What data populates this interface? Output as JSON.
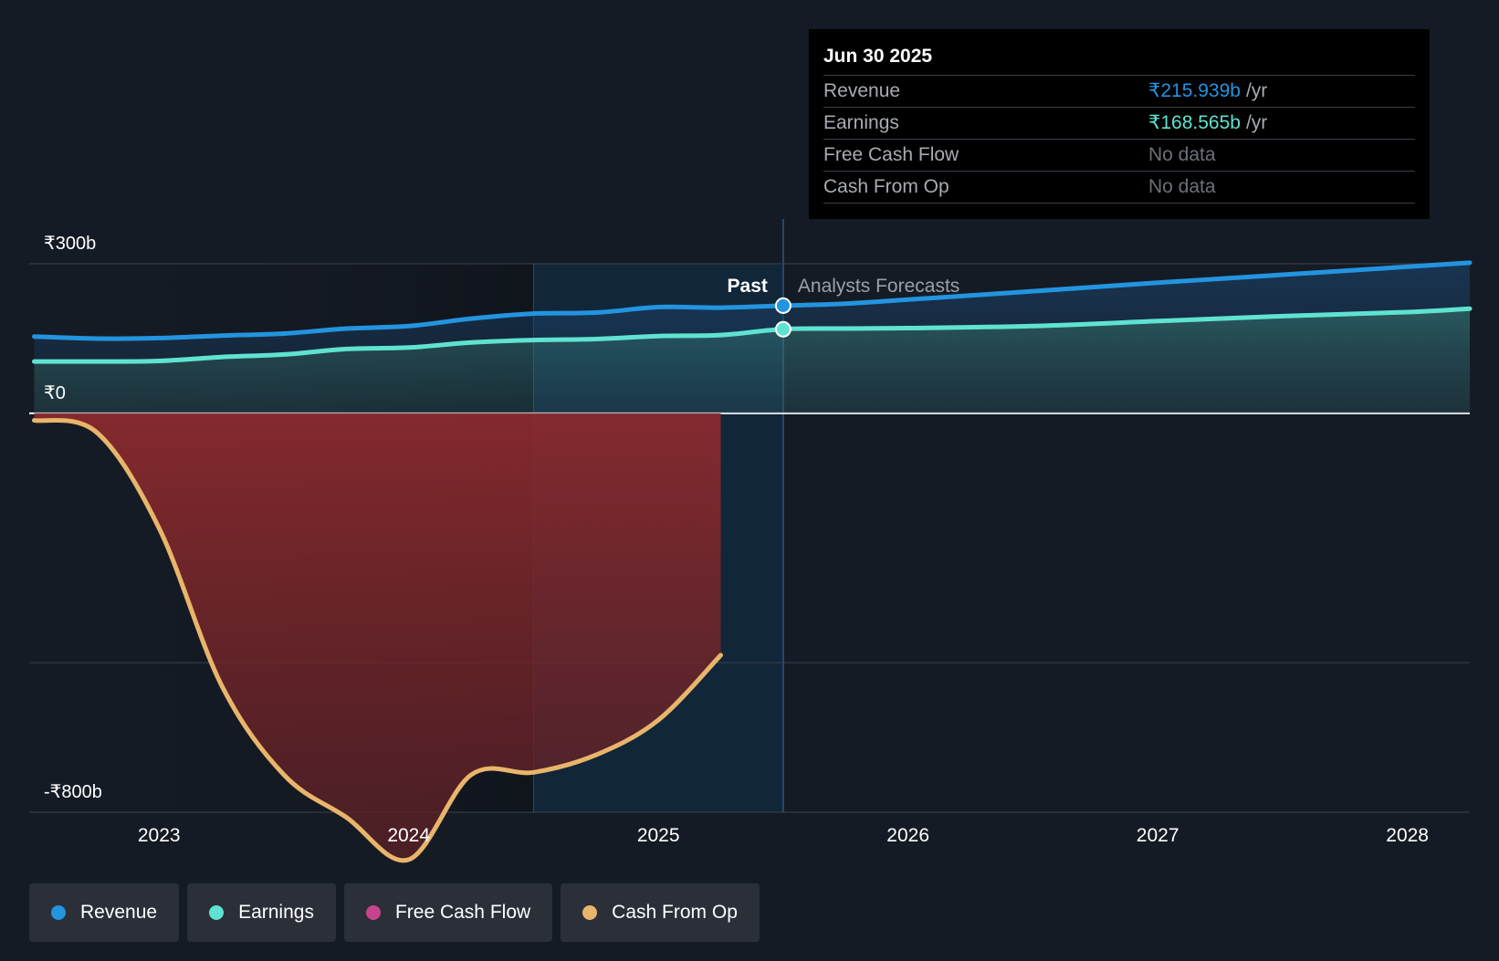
{
  "chart_data": {
    "type": "area",
    "title": "",
    "currency": "₹",
    "y_axis": {
      "min": -800,
      "max": 300,
      "unit": "b",
      "tick_labels": [
        {
          "value": 300,
          "label": "₹300b"
        },
        {
          "value": 0,
          "label": "₹0"
        },
        {
          "value": -800,
          "label": "-₹800b"
        }
      ],
      "gridlines": [
        300,
        0,
        -500,
        -800
      ]
    },
    "x_axis": {
      "min": 2022.48,
      "max": 2028.25,
      "tick_labels": [
        {
          "value": 2023,
          "label": "2023"
        },
        {
          "value": 2024,
          "label": "2024"
        },
        {
          "value": 2025,
          "label": "2025"
        },
        {
          "value": 2026,
          "label": "2026"
        },
        {
          "value": 2027,
          "label": "2027"
        },
        {
          "value": 2028,
          "label": "2028"
        }
      ]
    },
    "regions": {
      "past_label": "Past",
      "forecast_label": "Analysts Forecasts",
      "highlight_start": 2024.5,
      "divider": 2025.5
    },
    "series": [
      {
        "name": "Revenue",
        "color": "#2394df",
        "x": [
          2022.5,
          2022.75,
          2023.0,
          2023.25,
          2023.5,
          2023.75,
          2024.0,
          2024.25,
          2024.5,
          2024.75,
          2025.0,
          2025.25,
          2025.5,
          2025.75,
          2026.0,
          2026.5,
          2027.0,
          2027.5,
          2028.0,
          2028.25
        ],
        "values": [
          154,
          150,
          151,
          156,
          160,
          170,
          175,
          190,
          200,
          202,
          213,
          212,
          216,
          220,
          228,
          245,
          262,
          278,
          294,
          302
        ]
      },
      {
        "name": "Earnings",
        "color": "#5fe3d0",
        "x": [
          2022.5,
          2022.75,
          2023.0,
          2023.25,
          2023.5,
          2023.75,
          2024.0,
          2024.25,
          2024.5,
          2024.75,
          2025.0,
          2025.25,
          2025.5,
          2025.75,
          2026.0,
          2026.5,
          2027.0,
          2027.5,
          2028.0,
          2028.25
        ],
        "values": [
          104,
          104,
          105,
          113,
          118,
          129,
          132,
          142,
          147,
          149,
          155,
          157,
          169,
          170,
          171,
          175,
          185,
          195,
          203,
          210
        ]
      },
      {
        "name": "Free Cash Flow",
        "color": "#c8458e",
        "x": [],
        "values": []
      },
      {
        "name": "Cash From Op",
        "color": "#e9b56b",
        "x": [
          2022.5,
          2022.75,
          2023.0,
          2023.25,
          2023.5,
          2023.75,
          2024.0,
          2024.25,
          2024.5,
          2024.75,
          2025.0,
          2025.25
        ],
        "values": [
          -14,
          -38,
          -230,
          -545,
          -725,
          -810,
          -895,
          -725,
          -720,
          -685,
          -615,
          -485
        ]
      }
    ],
    "marker_x": 2025.5,
    "markers": [
      {
        "series": "Revenue",
        "value": 215.939
      },
      {
        "series": "Earnings",
        "value": 168.565
      }
    ]
  },
  "tooltip": {
    "date": "Jun 30 2025",
    "rows": [
      {
        "label": "Revenue",
        "value": "₹215.939b",
        "unit": "/yr",
        "color": "#2394df"
      },
      {
        "label": "Earnings",
        "value": "₹168.565b",
        "unit": "/yr",
        "color": "#5fe3d0"
      },
      {
        "label": "Free Cash Flow",
        "value": "No data",
        "unit": "",
        "color": "#6b7079"
      },
      {
        "label": "Cash From Op",
        "value": "No data",
        "unit": "",
        "color": "#6b7079"
      }
    ]
  },
  "legend": [
    {
      "label": "Revenue",
      "color": "#2394df"
    },
    {
      "label": "Earnings",
      "color": "#5fe3d0"
    },
    {
      "label": "Free Cash Flow",
      "color": "#c8458e"
    },
    {
      "label": "Cash From Op",
      "color": "#e9b56b"
    }
  ]
}
